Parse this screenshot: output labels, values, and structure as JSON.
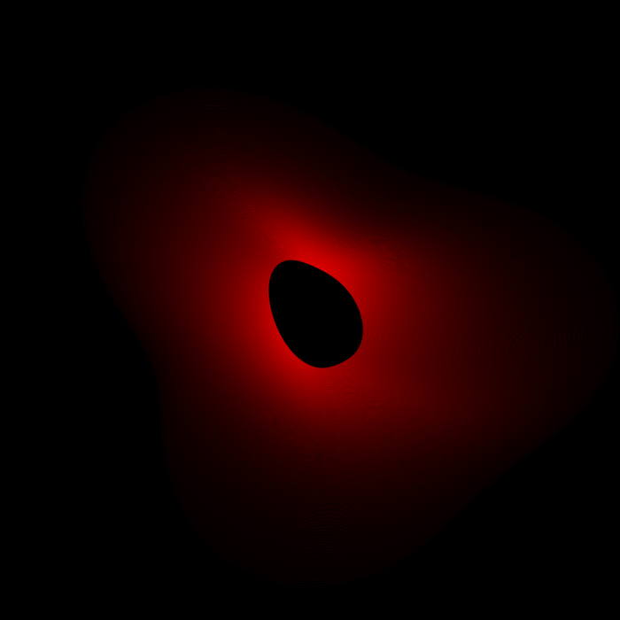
{
  "scene": {
    "subject": "harmonograph-curve",
    "background_color": "#000000",
    "stroke_color": "#ff0000",
    "glow_color": "#ff2a1a"
  }
}
